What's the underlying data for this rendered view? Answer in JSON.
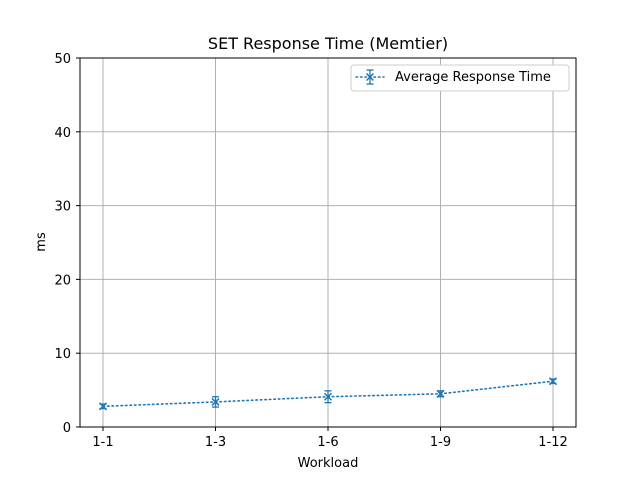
{
  "chart_data": {
    "type": "line",
    "title": "SET Response Time (Memtier)",
    "xlabel": "Workload",
    "ylabel": "ms",
    "categories": [
      "1-1",
      "1-3",
      "1-6",
      "1-9",
      "1-12"
    ],
    "ylim": [
      0,
      50
    ],
    "yticks": [
      0,
      10,
      20,
      30,
      40,
      50
    ],
    "grid": true,
    "legend_position": "top-right",
    "series": [
      {
        "name": "Average Response Time",
        "values": [
          2.8,
          3.4,
          4.1,
          4.5,
          6.2
        ],
        "errors": [
          0.3,
          0.7,
          0.8,
          0.4,
          0.3
        ],
        "color": "#1f77b4",
        "linestyle": "dotted",
        "marker": "x"
      }
    ]
  }
}
